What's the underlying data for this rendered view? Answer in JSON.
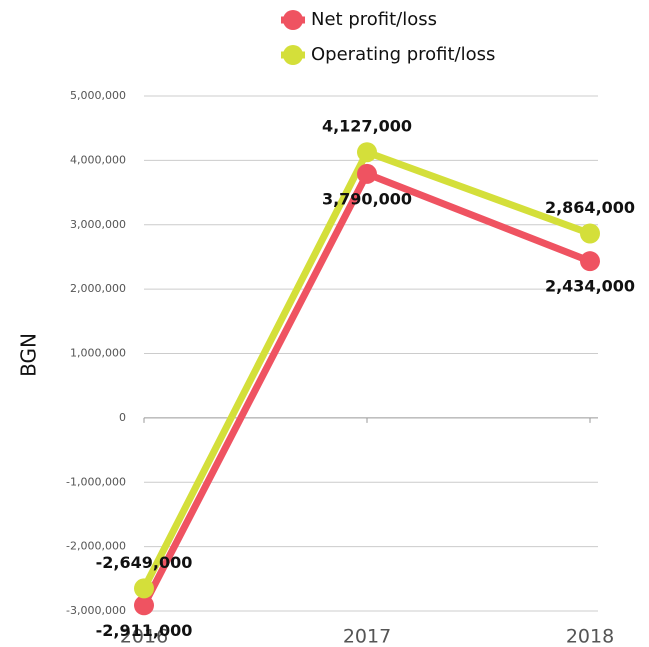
{
  "chart_data": {
    "type": "line",
    "categories": [
      "2016",
      "2017",
      "2018"
    ],
    "y_label": "BGN",
    "series": [
      {
        "name": "Net profit/loss",
        "color": "#ef5361",
        "values": [
          -2911000,
          3790000,
          2434000
        ],
        "value_labels": [
          "-2,911,000",
          "3,790,000",
          "2,434,000"
        ]
      },
      {
        "name": "Operating profit/loss",
        "color": "#d4df3a",
        "values": [
          -2649000,
          4127000,
          2864000
        ],
        "value_labels": [
          "-2,649,000",
          "4,127,000",
          "2,864,000"
        ]
      }
    ],
    "ylim": [
      -3000000,
      5000000
    ],
    "yticks": [
      {
        "value": -3000000,
        "label": "-3,000,000"
      },
      {
        "value": -2000000,
        "label": "-2,000,000"
      },
      {
        "value": -1000000,
        "label": "-1,000,000"
      },
      0,
      {
        "value": 1000000,
        "label": "1,000,000"
      },
      {
        "value": 2000000,
        "label": "2,000,000"
      },
      {
        "value": 3000000,
        "label": "3,000,000"
      },
      {
        "value": 4000000,
        "label": "4,000,000"
      },
      {
        "value": 5000000,
        "label": "5,000,000"
      }
    ],
    "grid": true,
    "legend": "top"
  }
}
